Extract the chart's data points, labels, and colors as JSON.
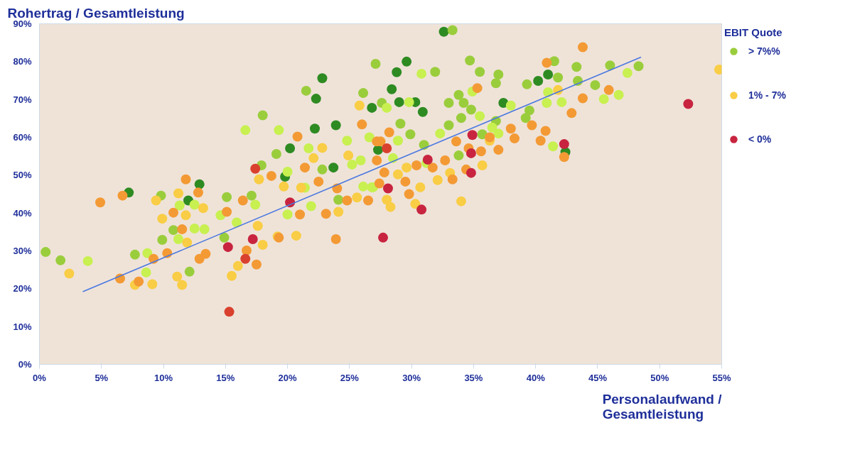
{
  "chart_data": {
    "type": "scatter",
    "ylabel": "Rohertrag / Gesamtleistung",
    "xlabel": "Personalaufwand / Gesamtleistung",
    "legend_title": "EBIT Quote",
    "legend": "right",
    "marker": "circle",
    "grid": false,
    "xlim": [
      0,
      55
    ],
    "ylim": [
      0,
      90
    ],
    "xticks": [
      {
        "value": 0,
        "label": "0%"
      },
      {
        "value": 5,
        "label": "5%"
      },
      {
        "value": 10,
        "label": "10%"
      },
      {
        "value": 15,
        "label": "15%"
      },
      {
        "value": 20,
        "label": "20%"
      },
      {
        "value": 25,
        "label": "25%"
      },
      {
        "value": 30,
        "label": "30%"
      },
      {
        "value": 35,
        "label": "35%"
      },
      {
        "value": 40,
        "label": "40%"
      },
      {
        "value": 45,
        "label": "45%"
      },
      {
        "value": 50,
        "label": "50%"
      },
      {
        "value": 55,
        "label": "55%"
      }
    ],
    "yticks": [
      {
        "value": 0,
        "label": "0%"
      },
      {
        "value": 10,
        "label": "10%"
      },
      {
        "value": 20,
        "label": "20%"
      },
      {
        "value": 30,
        "label": "30%"
      },
      {
        "value": 40,
        "label": "40%"
      },
      {
        "value": 50,
        "label": "50%"
      },
      {
        "value": 60,
        "label": "60%"
      },
      {
        "value": 70,
        "label": "70%"
      },
      {
        "value": 80,
        "label": "80%"
      },
      {
        "value": 90,
        "label": "90%"
      }
    ],
    "series": [
      {
        "name": "> 7%%",
        "color": "#9acd3c",
        "x": [
          7.2,
          12.0,
          12.9,
          19.8,
          20.2,
          22.8,
          22.3,
          22.2,
          23.9,
          23.7,
          26.8,
          27.3,
          32.6,
          29.6,
          28.8,
          28.4,
          29.0,
          30.3,
          30.9,
          37.4,
          40.2,
          41.0,
          42.4,
          0.5,
          1.7,
          7.7,
          9.8,
          10.8,
          9.9,
          12.1,
          15.1,
          17.1,
          18.0,
          19.1,
          21.5,
          24.1,
          26.1,
          27.1,
          22.8,
          17.9,
          14.9,
          33.3,
          31.9,
          34.7,
          35.5,
          37.0,
          36.8,
          39.3,
          41.5,
          41.8,
          43.3,
          43.4,
          44.8,
          46.0,
          48.3,
          33.0,
          33.8,
          34.2,
          34.8,
          34.0,
          29.1,
          29.9,
          33.0,
          35.7,
          36.8,
          39.5,
          39.2,
          31.0,
          27.6,
          33.8,
          3.9,
          8.7,
          8.6,
          11.3,
          12.5,
          14.6,
          15.9,
          16.6,
          19.3,
          21.7,
          21.4,
          20.0,
          21.9,
          17.4,
          13.3,
          12.5,
          11.2,
          26.6,
          25.2,
          26.1,
          26.9,
          20.0,
          25.9,
          24.8,
          30.8,
          34.9,
          28.0,
          29.8,
          32.3,
          35.5,
          36.5,
          37.0,
          38.0,
          41.0,
          40.9,
          42.1,
          41.4,
          45.5,
          46.7,
          47.4,
          28.9,
          28.5,
          26.8,
          31.2
        ],
        "values": [
          45.4,
          43.3,
          47.6,
          49.6,
          57.1,
          75.6,
          70.2,
          62.3,
          63.2,
          52.0,
          67.8,
          56.7,
          87.9,
          80.0,
          77.2,
          72.7,
          69.3,
          69.3,
          66.7,
          69.1,
          74.9,
          76.6,
          56.1,
          29.7,
          27.5,
          29.0,
          44.6,
          35.5,
          32.9,
          24.5,
          44.2,
          44.6,
          65.8,
          55.6,
          72.3,
          43.5,
          71.7,
          79.4,
          51.5,
          52.6,
          33.5,
          88.3,
          77.3,
          80.3,
          77.3,
          76.6,
          74.3,
          74.0,
          80.1,
          75.8,
          78.6,
          74.9,
          73.8,
          79.0,
          78.8,
          69.1,
          71.2,
          69.1,
          67.3,
          65.1,
          63.6,
          60.8,
          63.2,
          60.8,
          64.3,
          67.1,
          65.1,
          58.0,
          69.1,
          55.2,
          27.3,
          29.4,
          24.3,
          42.0,
          42.2,
          39.4,
          37.5,
          61.9,
          61.9,
          57.1,
          46.7,
          39.6,
          41.8,
          42.2,
          35.7,
          35.9,
          33.1,
          60.0,
          52.8,
          47.0,
          46.8,
          50.9,
          53.9,
          59.1,
          76.8,
          72.1,
          67.8,
          69.3,
          61.0,
          65.6,
          62.6,
          61.0,
          68.4,
          71.9,
          69.1,
          69.3,
          57.6,
          70.1,
          71.2,
          77.0,
          59.1,
          54.5,
          46.8,
          53.2
        ],
        "colors": [
          "#2e8b22",
          "#2e8b22",
          "#2e8b22",
          "#2e8b22",
          "#2e8b22",
          "#2e8b22",
          "#2e8b22",
          "#2e8b22",
          "#2e8b22",
          "#2e8b22",
          "#2e8b22",
          "#2e8b22",
          "#2e8b22",
          "#2e8b22",
          "#2e8b22",
          "#2e8b22",
          "#2e8b22",
          "#2e8b22",
          "#2e8b22",
          "#2e8b22",
          "#2e8b22",
          "#2e8b22",
          "#2e8b22",
          "#9acd3c",
          "#9acd3c",
          "#9acd3c",
          "#9acd3c",
          "#9acd3c",
          "#9acd3c",
          "#9acd3c",
          "#9acd3c",
          "#9acd3c",
          "#9acd3c",
          "#9acd3c",
          "#9acd3c",
          "#9acd3c",
          "#9acd3c",
          "#9acd3c",
          "#9acd3c",
          "#9acd3c",
          "#9acd3c",
          "#9acd3c",
          "#9acd3c",
          "#9acd3c",
          "#9acd3c",
          "#9acd3c",
          "#9acd3c",
          "#9acd3c",
          "#9acd3c",
          "#9acd3c",
          "#9acd3c",
          "#9acd3c",
          "#9acd3c",
          "#9acd3c",
          "#9acd3c",
          "#9acd3c",
          "#9acd3c",
          "#9acd3c",
          "#9acd3c",
          "#9acd3c",
          "#9acd3c",
          "#9acd3c",
          "#9acd3c",
          "#9acd3c",
          "#9acd3c",
          "#9acd3c",
          "#9acd3c",
          "#9acd3c",
          "#9acd3c",
          "#9acd3c",
          "#c8f050",
          "#c8f050",
          "#c8f050",
          "#c8f050",
          "#c8f050",
          "#c8f050",
          "#c8f050",
          "#c8f050",
          "#c8f050",
          "#c8f050",
          "#c8f050",
          "#c8f050",
          "#c8f050",
          "#c8f050",
          "#c8f050",
          "#c8f050",
          "#c8f050",
          "#c8f050",
          "#c8f050",
          "#c8f050",
          "#c8f050",
          "#c8f050",
          "#c8f050",
          "#c8f050",
          "#c8f050",
          "#c8f050",
          "#c8f050",
          "#c8f050",
          "#c8f050",
          "#c8f050",
          "#c8f050",
          "#c8f050",
          "#c8f050",
          "#c8f050",
          "#c8f050",
          "#c8f050",
          "#c8f050",
          "#c8f050",
          "#c8f050",
          "#c8f050",
          "#c8f050",
          "#c8f050",
          "#c8f050",
          "#c8f050"
        ]
      },
      {
        "name": "1% - 7%",
        "color": "#f9cd45",
        "x": [
          2.4,
          54.8,
          9.9,
          9.4,
          11.2,
          11.5,
          11.1,
          7.7,
          9.1,
          15.5,
          16.0,
          18.0,
          19.2,
          20.7,
          17.7,
          19.7,
          21.1,
          25.8,
          22.8,
          22.1,
          24.9,
          25.6,
          24.1,
          11.8,
          13.2,
          17.6,
          11.9,
          34.0,
          35.7,
          32.1,
          36.3,
          30.3,
          28.3,
          28.0,
          29.6,
          30.7,
          28.9,
          33.1,
          41.8,
          4.9,
          6.7,
          6.5,
          8.0,
          9.2,
          10.3,
          10.8,
          11.8,
          12.8,
          11.5,
          12.9,
          13.4,
          15.1,
          16.4,
          16.7,
          17.5,
          18.7,
          20.8,
          19.3,
          21.0,
          21.4,
          22.5,
          23.1,
          23.9,
          26.0,
          24.0,
          24.8,
          26.5,
          27.2,
          27.4,
          43.8,
          40.9,
          35.3,
          42.9,
          43.8,
          45.9,
          40.8,
          40.4,
          39.7,
          38.3,
          38.0,
          42.3,
          37.0,
          35.6,
          34.6,
          33.6,
          36.3,
          32.7,
          31.7,
          33.3,
          29.8,
          28.2,
          27.8,
          27.2,
          30.4,
          29.5,
          34.4,
          27.5
        ],
        "values": [
          24.0,
          77.9,
          38.5,
          43.3,
          45.2,
          21.0,
          23.2,
          21.0,
          21.2,
          23.4,
          26.0,
          31.6,
          33.8,
          34.0,
          48.9,
          47.0,
          46.7,
          68.4,
          57.2,
          54.5,
          55.2,
          44.1,
          40.3,
          39.4,
          41.3,
          36.6,
          32.2,
          43.1,
          52.6,
          48.7,
          59.1,
          42.4,
          41.6,
          43.5,
          52.0,
          46.8,
          50.2,
          50.6,
          72.5,
          42.8,
          44.6,
          22.7,
          21.9,
          27.9,
          29.4,
          40.1,
          48.9,
          45.4,
          35.7,
          27.9,
          29.2,
          40.3,
          43.3,
          30.1,
          26.4,
          49.8,
          60.2,
          33.5,
          39.6,
          52.0,
          48.3,
          39.8,
          33.1,
          63.4,
          46.5,
          43.3,
          43.3,
          58.9,
          47.8,
          83.8,
          79.7,
          73.0,
          66.4,
          70.3,
          72.5,
          61.7,
          59.1,
          63.2,
          59.7,
          62.3,
          54.8,
          56.7,
          56.3,
          57.1,
          58.9,
          60.0,
          53.9,
          52.0,
          48.9,
          45.0,
          61.3,
          50.7,
          53.9,
          52.6,
          48.3,
          51.5,
          58.9
        ],
        "colors": [
          "#f9cd45",
          "#f9cd45",
          "#f9cd45",
          "#f9cd45",
          "#f9cd45",
          "#f9cd45",
          "#f9cd45",
          "#f9cd45",
          "#f9cd45",
          "#f9cd45",
          "#f9cd45",
          "#f9cd45",
          "#f9cd45",
          "#f9cd45",
          "#f9cd45",
          "#f9cd45",
          "#f9cd45",
          "#f9cd45",
          "#f9cd45",
          "#f9cd45",
          "#f9cd45",
          "#f9cd45",
          "#f9cd45",
          "#f9cd45",
          "#f9cd45",
          "#f9cd45",
          "#f9cd45",
          "#f9cd45",
          "#f9cd45",
          "#f9cd45",
          "#f9cd45",
          "#f9cd45",
          "#f9cd45",
          "#f9cd45",
          "#f9cd45",
          "#f9cd45",
          "#f9cd45",
          "#f9cd45",
          "#f9cd45",
          "#f39a35",
          "#f39a35",
          "#f39a35",
          "#f39a35",
          "#f39a35",
          "#f39a35",
          "#f39a35",
          "#f39a35",
          "#f39a35",
          "#f39a35",
          "#f39a35",
          "#f39a35",
          "#f39a35",
          "#f39a35",
          "#f39a35",
          "#f39a35",
          "#f39a35",
          "#f39a35",
          "#f39a35",
          "#f39a35",
          "#f39a35",
          "#f39a35",
          "#f39a35",
          "#f39a35",
          "#f39a35",
          "#f39a35",
          "#f39a35",
          "#f39a35",
          "#f39a35",
          "#f39a35",
          "#f39a35",
          "#f39a35",
          "#f39a35",
          "#f39a35",
          "#f39a35",
          "#f39a35",
          "#f39a35",
          "#f39a35",
          "#f39a35",
          "#f39a35",
          "#f39a35",
          "#f39a35",
          "#f39a35",
          "#f39a35",
          "#f39a35",
          "#f39a35",
          "#f39a35",
          "#f39a35",
          "#f39a35",
          "#f39a35",
          "#f39a35",
          "#f39a35",
          "#f39a35",
          "#f39a35",
          "#f39a35",
          "#f39a35",
          "#f39a35",
          "#f39a35"
        ]
      },
      {
        "name": "< 0%",
        "color": "#c8243f",
        "x": [
          17.4,
          20.2,
          15.2,
          17.2,
          16.6,
          15.3,
          27.7,
          30.8,
          28.1,
          34.8,
          34.8,
          34.9,
          31.3,
          28.0,
          42.3,
          52.3
        ],
        "values": [
          51.7,
          42.8,
          31.0,
          33.1,
          27.9,
          13.9,
          33.5,
          40.9,
          46.5,
          50.6,
          55.8,
          60.6,
          54.1,
          57.1,
          58.2,
          68.8
        ],
        "colors": [
          "#d9412e",
          "#c8243f",
          "#c8243f",
          "#c8243f",
          "#d9412e",
          "#d9412e",
          "#c8243f",
          "#c8243f",
          "#c8243f",
          "#c8243f",
          "#c8243f",
          "#c8243f",
          "#c8243f",
          "#d9412e",
          "#c8243f",
          "#c8243f"
        ]
      },
      {
        "type": "line",
        "marker": "none",
        "color": "#4a78e0",
        "x": [
          3.5,
          48.5
        ],
        "values": [
          19.2,
          81.2
        ]
      }
    ]
  }
}
